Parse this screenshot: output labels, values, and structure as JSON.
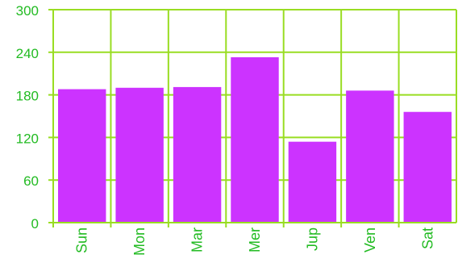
{
  "chart_data": {
    "type": "bar",
    "categories": [
      "Sun",
      "Mon",
      "Mar",
      "Mer",
      "Jup",
      "Ven",
      "Sat"
    ],
    "values": [
      188,
      190,
      191,
      233,
      114,
      186,
      156
    ],
    "ylim": [
      0,
      300
    ],
    "yticks": [
      "0",
      "60",
      "120",
      "180",
      "240",
      "300"
    ],
    "grid": true,
    "colors": {
      "bar": "#cc33ff",
      "grid": "#99dd22",
      "text": "#22bb22"
    }
  }
}
